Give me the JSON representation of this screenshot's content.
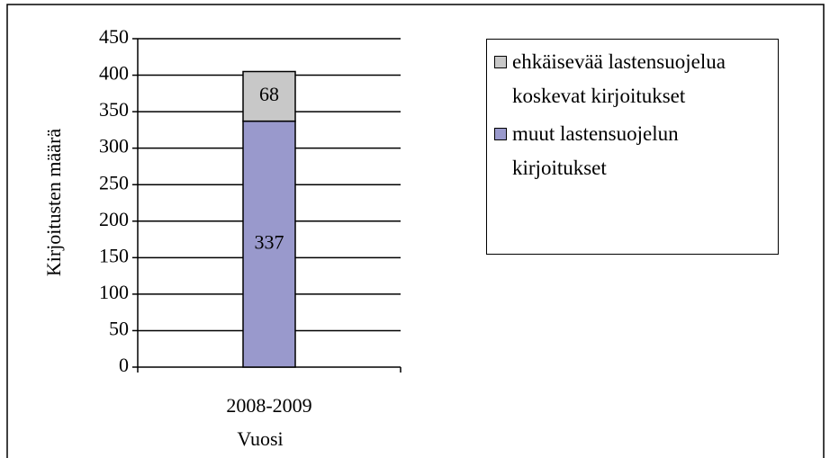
{
  "chart_data": {
    "type": "stacked_bar",
    "categories": [
      "2008-2009"
    ],
    "series": [
      {
        "name": "muut lastensuojelun kirjoitukset",
        "color": "#9999cc",
        "values": [
          337
        ]
      },
      {
        "name": "ehkäisevää lastensuojelua koskevat kirjoitukset",
        "color": "#c8c8c8",
        "values": [
          68
        ]
      }
    ],
    "x_label": "Vuosi",
    "y_label": "Kirjoitusten määrä",
    "ylim": [
      0,
      450
    ],
    "yticks": [
      0,
      50,
      100,
      150,
      200,
      250,
      300,
      350,
      400,
      450
    ],
    "grid": true,
    "legend": "right"
  }
}
